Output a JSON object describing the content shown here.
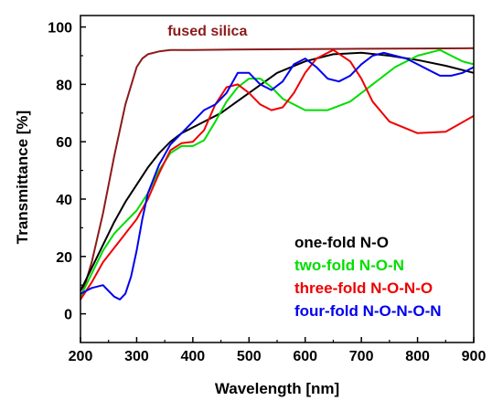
{
  "chart_data": {
    "type": "line",
    "title": "",
    "xlabel": "Wavelength [nm]",
    "ylabel": "Transmittance [%]",
    "xlim": [
      200,
      900
    ],
    "ylim": [
      -10,
      104
    ],
    "xticks": [
      200,
      300,
      400,
      500,
      600,
      700,
      800,
      900
    ],
    "yticks": [
      0,
      20,
      40,
      60,
      80,
      100
    ],
    "grid": false,
    "legend": {
      "placement": "bottom-right"
    },
    "annotations": [
      {
        "text": "fused silica",
        "x": 355,
        "y": 97,
        "color": "#8b1a1a"
      }
    ],
    "series": [
      {
        "name": "fused silica",
        "color": "#8b1a1a",
        "x": [
          200,
          220,
          240,
          260,
          280,
          300,
          310,
          320,
          340,
          360,
          400,
          500,
          600,
          700,
          800,
          900
        ],
        "y": [
          5,
          18,
          35,
          55,
          73,
          86,
          89,
          90.5,
          91.5,
          92,
          92,
          92.2,
          92.3,
          92.4,
          92.5,
          92.6
        ]
      },
      {
        "name": "one-fold N-O",
        "color": "#000000",
        "x": [
          200,
          220,
          240,
          260,
          280,
          300,
          320,
          340,
          360,
          380,
          400,
          450,
          500,
          550,
          600,
          650,
          700,
          750,
          800,
          850,
          900
        ],
        "y": [
          8,
          16,
          24,
          32,
          39,
          45,
          51,
          56,
          60,
          63,
          65,
          70,
          77,
          84,
          88,
          90.5,
          91,
          90,
          88.5,
          86.5,
          84
        ]
      },
      {
        "name": "two-fold N-O-N",
        "color": "#00dd00",
        "x": [
          200,
          220,
          240,
          260,
          280,
          300,
          320,
          340,
          360,
          380,
          400,
          420,
          440,
          460,
          480,
          500,
          520,
          540,
          560,
          600,
          640,
          680,
          720,
          760,
          800,
          840,
          860,
          880,
          900
        ],
        "y": [
          6,
          14,
          22,
          28,
          32,
          36,
          42,
          50,
          56,
          58.5,
          58.5,
          60.5,
          67,
          74,
          79,
          82,
          82,
          79,
          75,
          71,
          71,
          74,
          80,
          86,
          90,
          92,
          90,
          88,
          87
        ]
      },
      {
        "name": "three-fold N-O-N-O",
        "color": "#ee0000",
        "x": [
          200,
          220,
          240,
          260,
          280,
          300,
          320,
          340,
          360,
          380,
          400,
          420,
          440,
          460,
          480,
          500,
          520,
          540,
          560,
          580,
          600,
          620,
          650,
          680,
          700,
          720,
          750,
          800,
          850,
          900
        ],
        "y": [
          5,
          11,
          18,
          23,
          28,
          33,
          40,
          49,
          57,
          59.5,
          60,
          64,
          73,
          79,
          80,
          77,
          73,
          71,
          72,
          77,
          84,
          89,
          92,
          88,
          82,
          74,
          67,
          63,
          63.5,
          69
        ]
      },
      {
        "name": "four-fold N-O-N-O-N",
        "color": "#0000ee",
        "x": [
          200,
          220,
          240,
          250,
          260,
          270,
          280,
          290,
          300,
          310,
          320,
          340,
          360,
          380,
          400,
          420,
          440,
          460,
          480,
          500,
          520,
          540,
          560,
          580,
          600,
          620,
          640,
          660,
          680,
          700,
          720,
          740,
          760,
          780,
          800,
          820,
          840,
          860,
          880,
          900
        ],
        "y": [
          7,
          9,
          10,
          8,
          6,
          5,
          7,
          13,
          22,
          33,
          42,
          52,
          59,
          63,
          67,
          71,
          73,
          77,
          84,
          84,
          80,
          78,
          81,
          87,
          89,
          86,
          82,
          81,
          83,
          87,
          90,
          91,
          90,
          89,
          87,
          85,
          83,
          83,
          84,
          86
        ]
      }
    ]
  }
}
